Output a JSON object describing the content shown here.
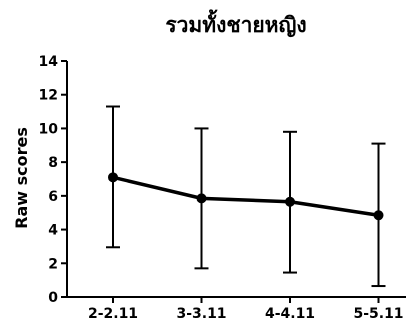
{
  "chart_data": {
    "type": "line",
    "title": "รวมทั้งชายหญิง",
    "xlabel": "",
    "ylabel": "Raw scores",
    "categories": [
      "2-2.11",
      "3-3.11",
      "4-4.11",
      "5-5.11"
    ],
    "series": [
      {
        "values": [
          7.1,
          5.85,
          5.65,
          4.85
        ],
        "error_upper": [
          11.3,
          10.0,
          9.8,
          9.1
        ],
        "error_lower": [
          2.95,
          1.7,
          1.45,
          0.65
        ]
      }
    ],
    "ylim": [
      0,
      14
    ],
    "yticks": [
      "0",
      "2",
      "4",
      "6",
      "8",
      "10",
      "12",
      "14"
    ],
    "grid": false,
    "line_color": "#000000"
  }
}
